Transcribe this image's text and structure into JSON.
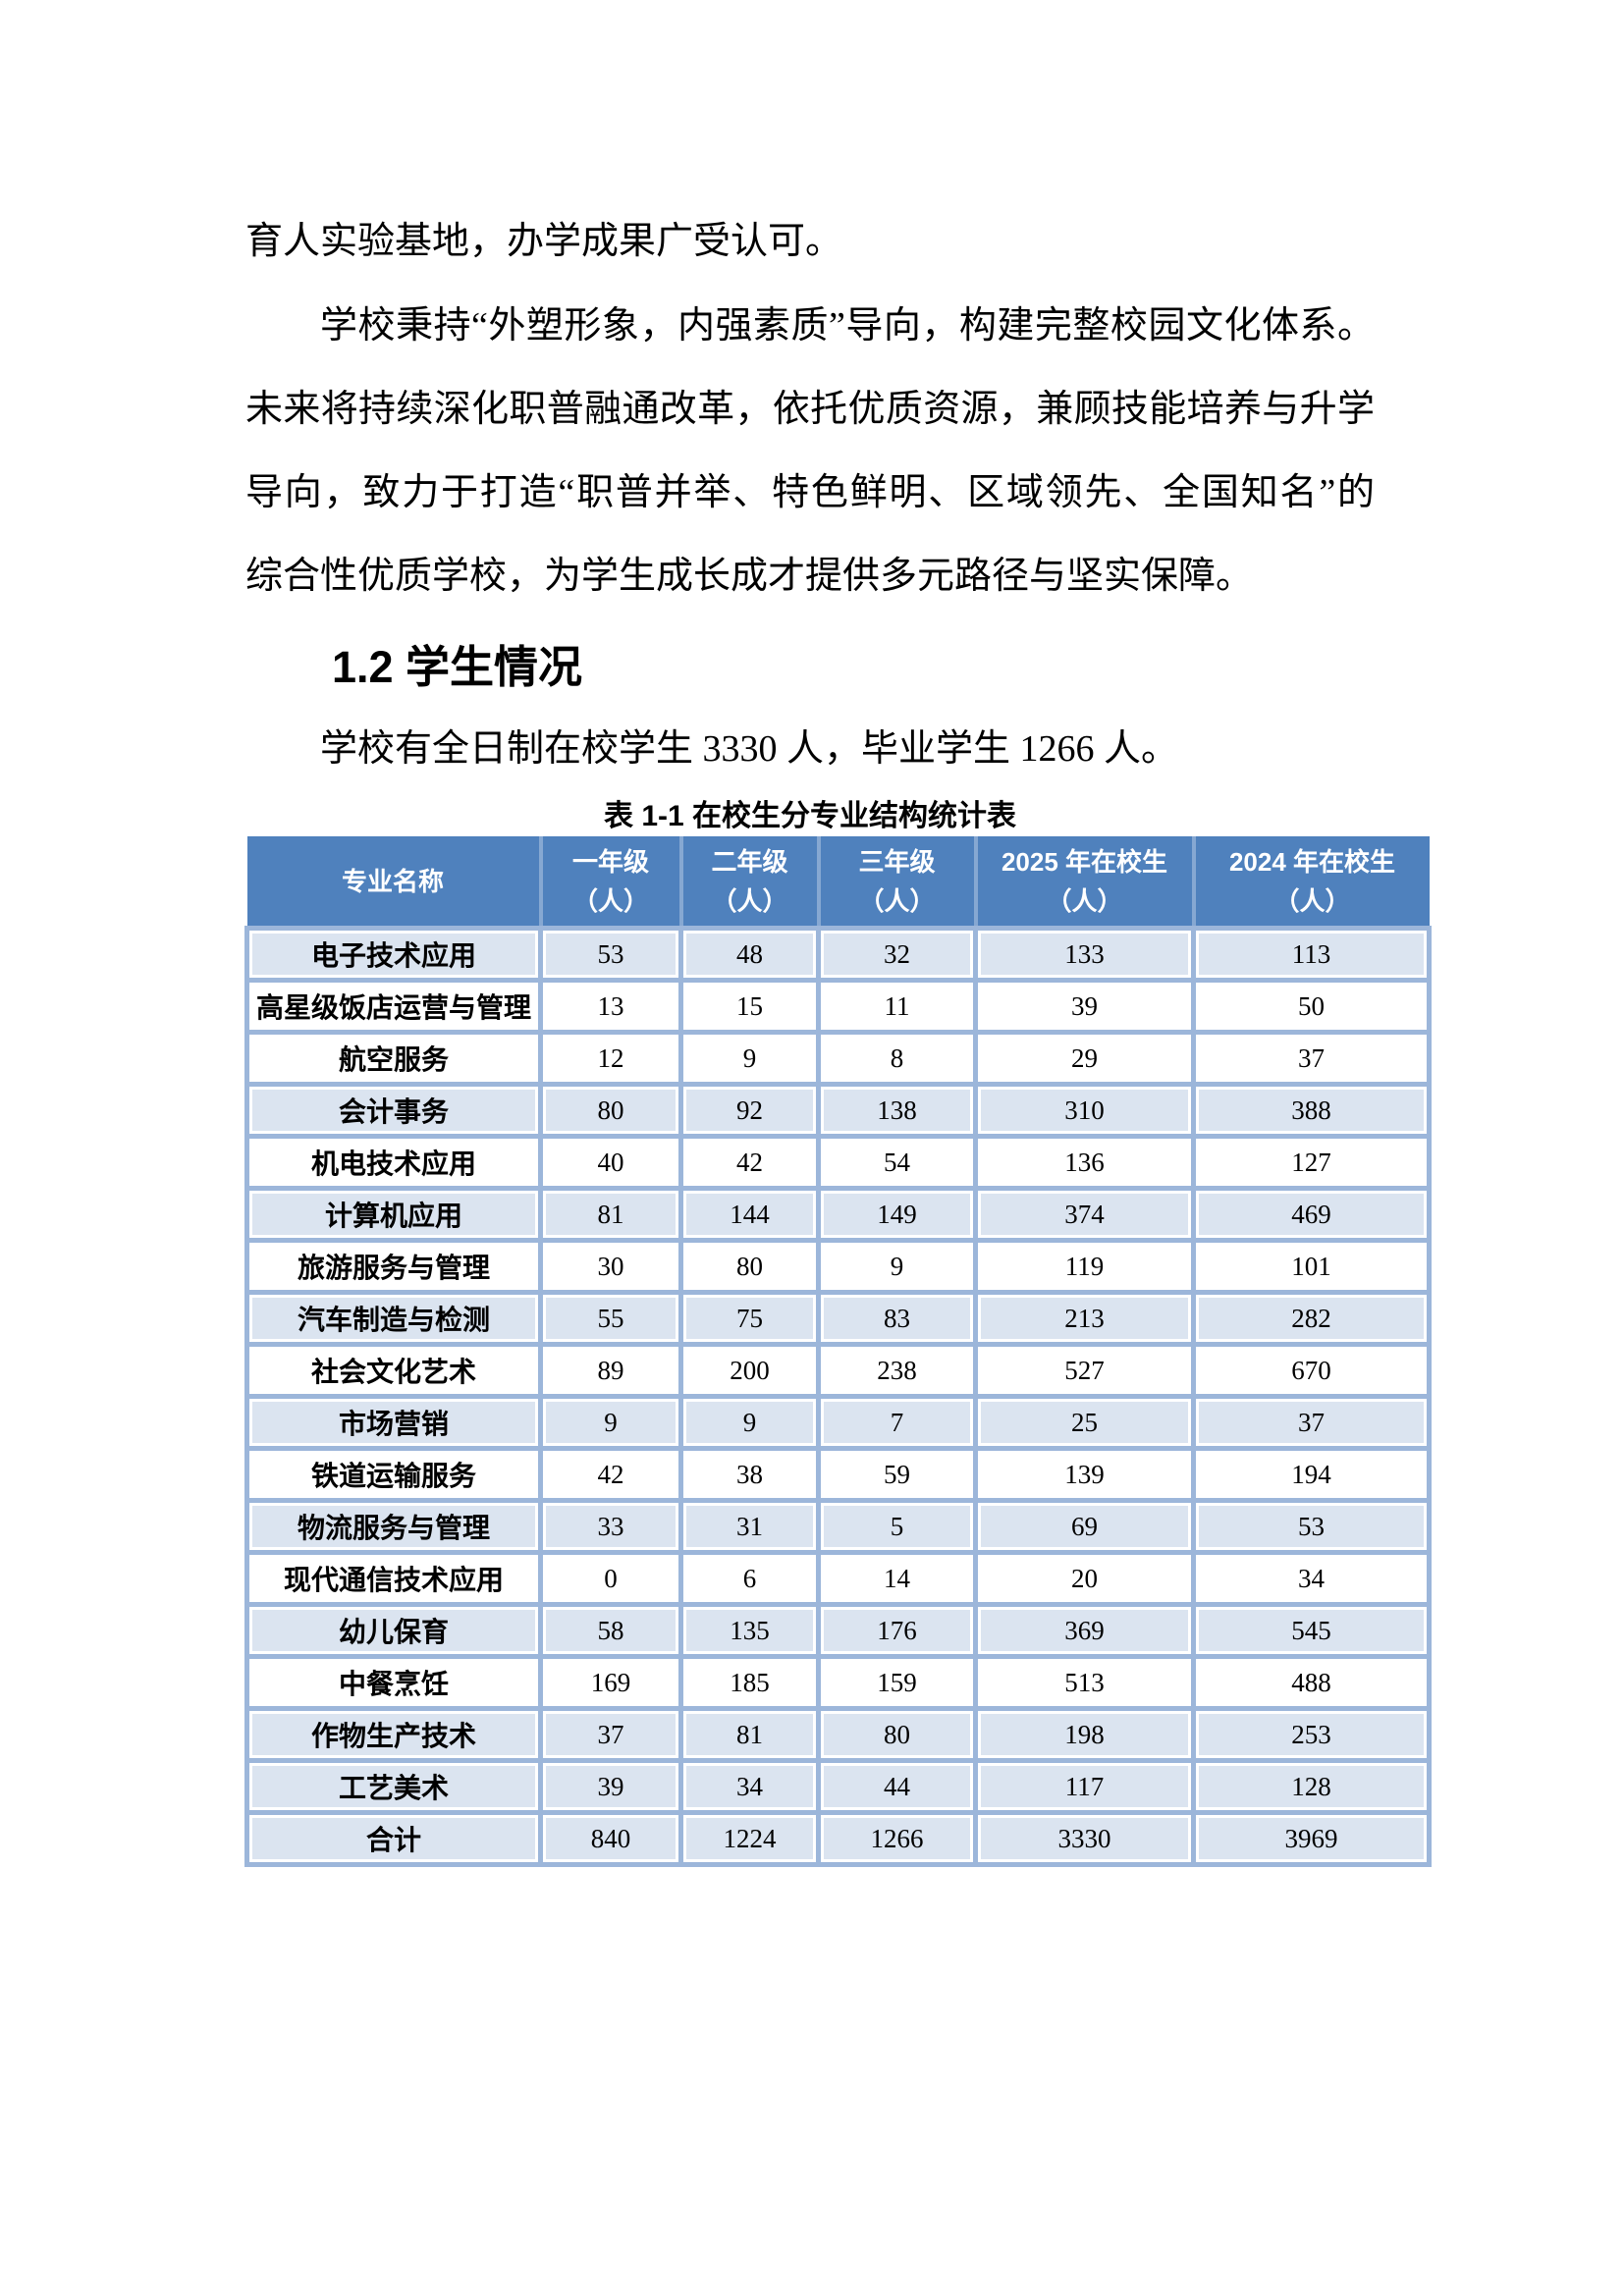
{
  "page": {
    "paragraph_continuation": "育人实验基地，办学成果广受认可。",
    "paragraph2_lines": [
      "学校秉持“外塑形象，内强素质”导向，构建完整校园文化体系。",
      "未来将持续深化职普融通改革，依托优质资源，兼顾技能培养与升学",
      "导向，致力于打造“职普并举、特色鲜明、区域领先、全国知名”的",
      "综合性优质学校，为学生成长成才提供多元路径与坚实保障。"
    ],
    "section_heading": "1.2 学生情况",
    "paragraph3": "学校有全日制在校学生 3330 人，毕业学生 1266 人。",
    "table_caption": "表 1-1 在校生分专业结构统计表"
  },
  "table": {
    "columns": [
      {
        "label": "专业名称",
        "unit": ""
      },
      {
        "label": "一年级",
        "unit": "（人）"
      },
      {
        "label": "二年级",
        "unit": "（人）"
      },
      {
        "label": "三年级",
        "unit": "（人）"
      },
      {
        "label": "2025 年在校生",
        "unit": "（人）"
      },
      {
        "label": "2024 年在校生",
        "unit": "（人）"
      }
    ],
    "rows": [
      {
        "name": "电子技术应用",
        "values": [
          53,
          48,
          32,
          133,
          113
        ],
        "shaded": true
      },
      {
        "name": "高星级饭店运营与管理",
        "values": [
          13,
          15,
          11,
          39,
          50
        ],
        "shaded": false
      },
      {
        "name": "航空服务",
        "values": [
          12,
          9,
          8,
          29,
          37
        ],
        "shaded": false
      },
      {
        "name": "会计事务",
        "values": [
          80,
          92,
          138,
          310,
          388
        ],
        "shaded": true
      },
      {
        "name": "机电技术应用",
        "values": [
          40,
          42,
          54,
          136,
          127
        ],
        "shaded": false
      },
      {
        "name": "计算机应用",
        "values": [
          81,
          144,
          149,
          374,
          469
        ],
        "shaded": true
      },
      {
        "name": "旅游服务与管理",
        "values": [
          30,
          80,
          9,
          119,
          101
        ],
        "shaded": false
      },
      {
        "name": "汽车制造与检测",
        "values": [
          55,
          75,
          83,
          213,
          282
        ],
        "shaded": true
      },
      {
        "name": "社会文化艺术",
        "values": [
          89,
          200,
          238,
          527,
          670
        ],
        "shaded": false
      },
      {
        "name": "市场营销",
        "values": [
          9,
          9,
          7,
          25,
          37
        ],
        "shaded": true
      },
      {
        "name": "铁道运输服务",
        "values": [
          42,
          38,
          59,
          139,
          194
        ],
        "shaded": false
      },
      {
        "name": "物流服务与管理",
        "values": [
          33,
          31,
          5,
          69,
          53
        ],
        "shaded": true
      },
      {
        "name": "现代通信技术应用",
        "values": [
          0,
          6,
          14,
          20,
          34
        ],
        "shaded": false
      },
      {
        "name": "幼儿保育",
        "values": [
          58,
          135,
          176,
          369,
          545
        ],
        "shaded": true
      },
      {
        "name": "中餐烹饪",
        "values": [
          169,
          185,
          159,
          513,
          488
        ],
        "shaded": false
      },
      {
        "name": "作物生产技术",
        "values": [
          37,
          81,
          80,
          198,
          253
        ],
        "shaded": true
      },
      {
        "name": "工艺美术",
        "values": [
          39,
          34,
          44,
          117,
          128
        ],
        "shaded": true
      },
      {
        "name": "合计",
        "values": [
          840,
          1224,
          1266,
          3330,
          3969
        ],
        "shaded": true
      }
    ]
  },
  "colors": {
    "header_bg": "#4f81bd",
    "header_text": "#ffffff",
    "header_divider": "#86a8d2",
    "grid_line": "#9cb6da",
    "row_shaded": "#dbe4f0",
    "text": "#000000"
  }
}
